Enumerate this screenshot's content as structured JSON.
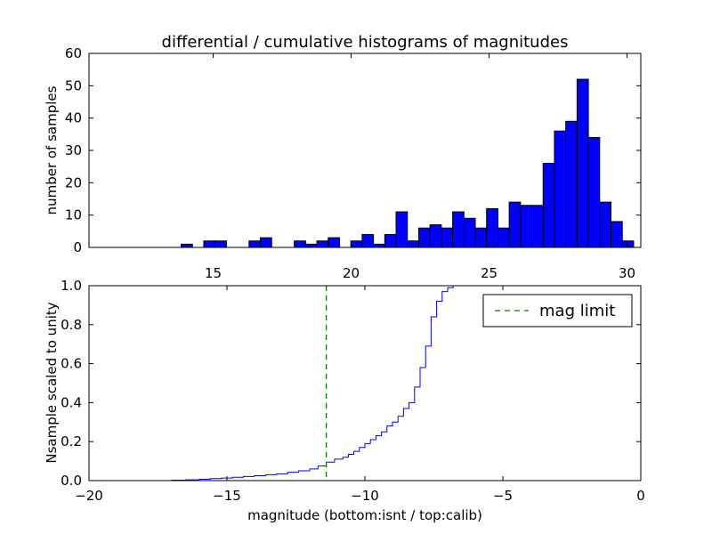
{
  "figure_title": "differential / cumulative histograms of magnitudes",
  "chart_data": [
    {
      "type": "bar",
      "title": "differential / cumulative histograms of magnitudes",
      "xlabel": "",
      "ylabel": "number of samples",
      "xlim": [
        10.5,
        30.5
      ],
      "ylim": [
        0,
        60
      ],
      "x_ticks": [
        15,
        20,
        25,
        30
      ],
      "y_ticks": [
        0,
        10,
        20,
        30,
        40,
        50,
        60
      ],
      "x_tick_position": "top-side-of-lower-panel",
      "bin_width": 0.41,
      "bin_left_edges": [
        13.84,
        14.25,
        14.66,
        15.07,
        15.48,
        15.89,
        16.3,
        16.71,
        17.12,
        17.53,
        17.94,
        18.35,
        18.76,
        19.17,
        19.58,
        19.99,
        20.4,
        20.81,
        21.22,
        21.63,
        22.04,
        22.45,
        22.86,
        23.27,
        23.68,
        24.09,
        24.5,
        24.91,
        25.32,
        25.73,
        26.14,
        26.55,
        26.96,
        27.37,
        27.78,
        28.19,
        28.6,
        29.01,
        29.42,
        29.83
      ],
      "values": [
        1,
        0,
        2,
        2,
        0,
        0,
        2,
        3,
        0,
        0,
        2,
        1,
        2,
        3,
        0,
        2,
        4,
        1,
        4,
        11,
        2,
        6,
        7,
        6,
        11,
        9,
        6,
        12,
        6,
        14,
        13,
        13,
        26,
        36,
        39,
        52,
        34,
        14,
        8,
        2
      ],
      "bar_color": "#0000ff",
      "edge_color": "#000000"
    },
    {
      "type": "line",
      "style": "step",
      "xlabel": "magnitude (bottom:isnt / top:calib)",
      "ylabel": "Nsample scaled to unity",
      "xlim": [
        -20,
        0
      ],
      "ylim": [
        0,
        1
      ],
      "x_ticks": [
        -20,
        -15,
        -10,
        -5,
        0
      ],
      "x_tick_labels": [
        "−20",
        "−15",
        "−10",
        "−5",
        "0"
      ],
      "y_ticks": [
        0.0,
        0.2,
        0.4,
        0.6,
        0.8,
        1.0
      ],
      "y_tick_labels": [
        "0.0",
        "0.2",
        "0.4",
        "0.6",
        "0.8",
        "1.0"
      ],
      "series": [
        {
          "color": "#0000ff",
          "x": [
            -20,
            -17.0,
            -16.5,
            -16.0,
            -15.6,
            -15.2,
            -14.8,
            -14.4,
            -14.0,
            -13.6,
            -13.2,
            -12.8,
            -12.4,
            -12.0,
            -11.7,
            -11.4,
            -11.1,
            -10.8,
            -10.6,
            -10.4,
            -10.2,
            -10.0,
            -9.8,
            -9.6,
            -9.4,
            -9.2,
            -9.0,
            -8.8,
            -8.6,
            -8.4,
            -8.2,
            -8.0,
            -7.8,
            -7.6,
            -7.4,
            -7.2,
            -7.0,
            -6.8,
            -6.6,
            -6.4,
            0
          ],
          "y": [
            0.0,
            0.002,
            0.004,
            0.007,
            0.01,
            0.013,
            0.017,
            0.021,
            0.025,
            0.03,
            0.035,
            0.043,
            0.05,
            0.06,
            0.075,
            0.095,
            0.11,
            0.12,
            0.135,
            0.15,
            0.17,
            0.19,
            0.21,
            0.23,
            0.25,
            0.28,
            0.3,
            0.33,
            0.37,
            0.4,
            0.48,
            0.58,
            0.69,
            0.84,
            0.92,
            0.97,
            0.99,
            1.0,
            1.0,
            1.0,
            1.0
          ]
        }
      ],
      "vline": {
        "x": -11.4,
        "color": "#007f00",
        "style": "dashed",
        "label": "mag limit"
      },
      "legend": {
        "placement": "top-right",
        "entries": [
          "mag limit"
        ]
      }
    }
  ]
}
